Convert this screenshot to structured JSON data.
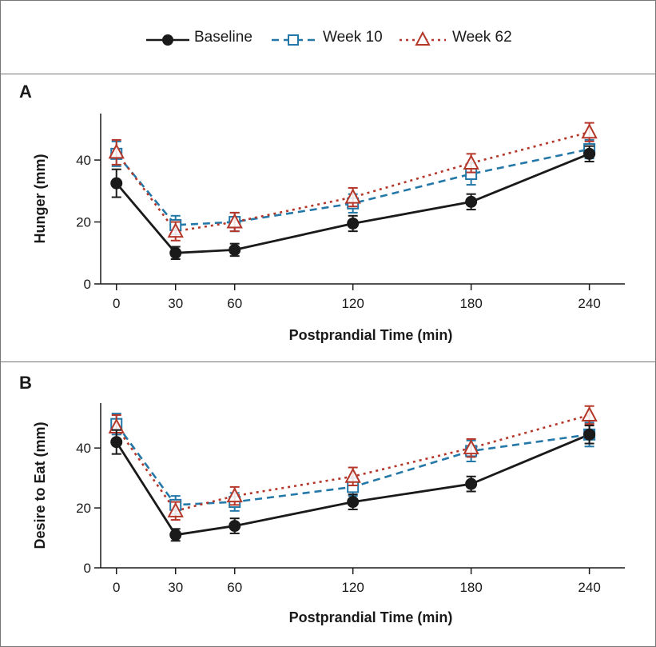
{
  "legend": [
    {
      "label": "Baseline"
    },
    {
      "label": "Week 10"
    },
    {
      "label": "Week 62"
    }
  ],
  "colors": {
    "baseline": "#1a1a1a",
    "week10": "#2478a8",
    "week62": "#b5372a"
  },
  "chart_data": [
    {
      "type": "line",
      "panel": "A",
      "xlabel": "Postprandial Time (min)",
      "ylabel": "Hunger (mm)",
      "x": [
        0,
        30,
        60,
        120,
        180,
        240
      ],
      "xticks": [
        0,
        30,
        60,
        120,
        180,
        240
      ],
      "yticks": [
        0,
        20,
        40
      ],
      "ylim": [
        0,
        55
      ],
      "xlim": [
        -8,
        258
      ],
      "series": [
        {
          "name": "Baseline",
          "values": [
            32.5,
            10,
            11,
            19.5,
            26.5,
            42
          ],
          "errors": [
            4.5,
            2,
            2,
            2.5,
            2.5,
            2.5
          ]
        },
        {
          "name": "Week 10",
          "values": [
            42,
            19,
            20,
            26,
            35.5,
            43.5
          ],
          "errors": [
            4,
            3,
            3,
            3,
            3.5,
            3
          ]
        },
        {
          "name": "Week 62",
          "values": [
            42.5,
            17,
            20,
            28,
            39,
            49
          ],
          "errors": [
            4,
            3,
            3,
            3,
            3,
            3
          ]
        }
      ]
    },
    {
      "type": "line",
      "panel": "B",
      "xlabel": "Postprandial Time (min)",
      "ylabel": "Desire to Eat (mm)",
      "x": [
        0,
        30,
        60,
        120,
        180,
        240
      ],
      "xticks": [
        0,
        30,
        60,
        120,
        180,
        240
      ],
      "yticks": [
        0,
        20,
        40
      ],
      "ylim": [
        0,
        55
      ],
      "xlim": [
        -8,
        258
      ],
      "series": [
        {
          "name": "Baseline",
          "values": [
            42,
            11,
            14,
            22,
            28,
            44.5
          ],
          "errors": [
            4,
            2,
            2.5,
            2.5,
            2.5,
            3
          ]
        },
        {
          "name": "Week 10",
          "values": [
            48,
            21,
            22,
            27,
            39,
            44.5
          ],
          "errors": [
            3.5,
            3,
            3,
            3,
            3.5,
            4
          ]
        },
        {
          "name": "Week 62",
          "values": [
            47,
            19,
            24,
            30.5,
            40,
            51
          ],
          "errors": [
            4,
            3,
            3,
            3,
            3,
            3
          ]
        }
      ]
    }
  ]
}
